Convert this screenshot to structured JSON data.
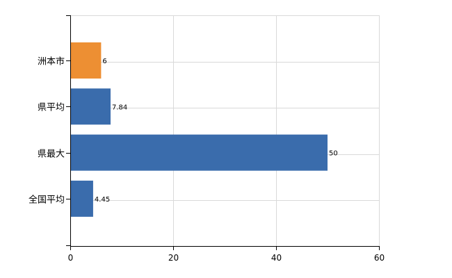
{
  "chart_data": {
    "type": "bar",
    "orientation": "horizontal",
    "categories": [
      "洲本市",
      "県平均",
      "県最大",
      "全国平均"
    ],
    "values": [
      6,
      7.84,
      50,
      4.45
    ],
    "value_labels": [
      "6",
      "7.84",
      "50",
      "4.45"
    ],
    "bar_colors": [
      "#ED8F33",
      "#3A6CAC",
      "#3A6CAC",
      "#3A6CAC"
    ],
    "xlim": [
      0,
      60
    ],
    "xticks": [
      0,
      20,
      40,
      60
    ],
    "xtick_labels": [
      "0",
      "20",
      "40",
      "60"
    ],
    "grid": true,
    "legend": "none",
    "title": "",
    "xlabel": "",
    "ylabel": ""
  }
}
